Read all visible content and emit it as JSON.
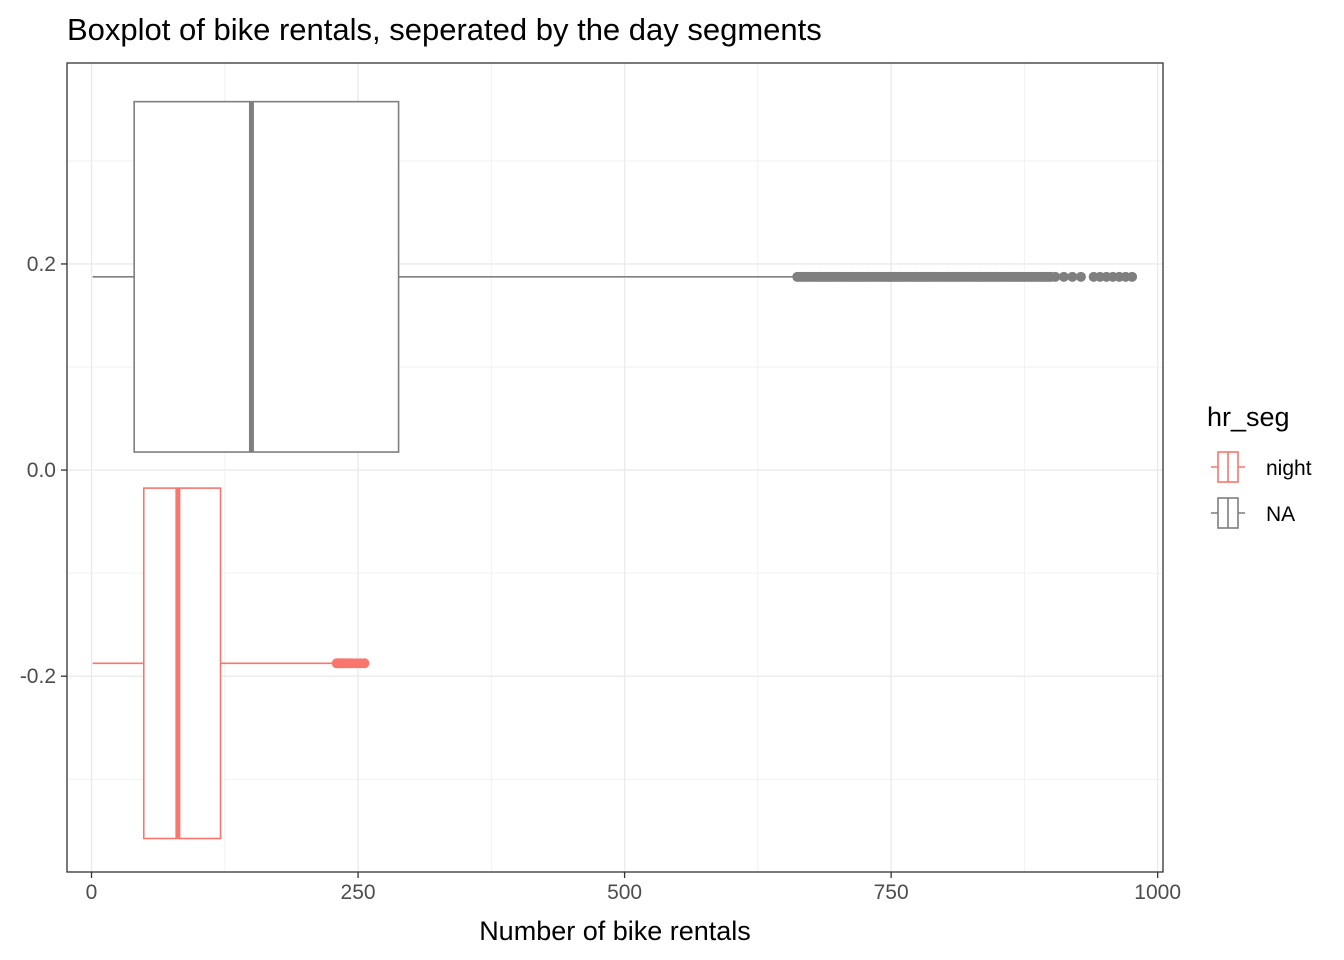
{
  "chart_data": {
    "type": "boxplot",
    "title": "Boxplot of bike rentals, seperated by the day segments",
    "xlabel": "Number of bike rentals",
    "ylabel": "",
    "xlim": [
      -23,
      1005
    ],
    "ylim": [
      -0.39,
      0.395
    ],
    "x_ticks": [
      0,
      250,
      500,
      750,
      1000
    ],
    "x_tick_labels": [
      "0",
      "250",
      "500",
      "750",
      "1000"
    ],
    "y_ticks": [
      -0.2,
      0.0,
      0.2
    ],
    "y_tick_labels": [
      "-0.2",
      "0.0",
      "0.2"
    ],
    "grid": true,
    "legend": {
      "title": "hr_seg",
      "placement": "right",
      "entries": [
        {
          "label": "night",
          "color": "#F8766D"
        },
        {
          "label": "NA",
          "color": "#7F7F7F"
        }
      ]
    },
    "series": [
      {
        "name": "night",
        "color": "#F8766D",
        "y_center": -0.1875,
        "y_range": [
          -0.3575,
          -0.0175
        ],
        "whisker_low": 1,
        "q1": 49,
        "median": 81,
        "q3": 121,
        "whisker_high": 228,
        "outliers": [
          230,
          232,
          234,
          236,
          238,
          241,
          244,
          248,
          252,
          256
        ]
      },
      {
        "name": "NA",
        "color": "#7F7F7F",
        "y_center": 0.1875,
        "y_range": [
          0.0175,
          0.3575
        ],
        "whisker_low": 1,
        "q1": 40,
        "median": 150,
        "q3": 288,
        "whisker_high": 660,
        "outliers_range": [
          662,
          978
        ],
        "outliers_sparse": [
          904,
          912,
          920,
          928,
          940,
          946,
          952,
          958,
          964,
          970,
          976
        ]
      }
    ]
  }
}
